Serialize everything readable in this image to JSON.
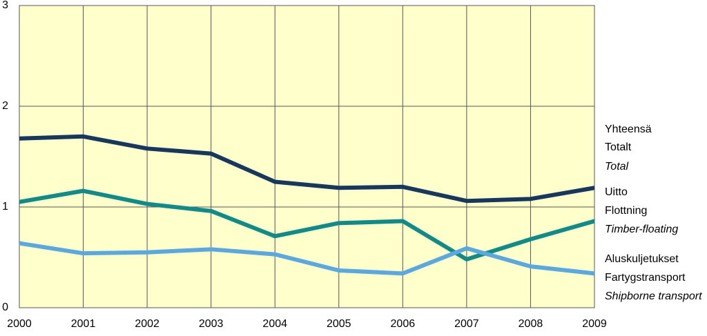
{
  "chart_data": {
    "type": "line",
    "x": [
      2000,
      2001,
      2002,
      2003,
      2004,
      2005,
      2006,
      2007,
      2008,
      2009
    ],
    "xlim": [
      2000,
      2009
    ],
    "xticks": [
      2000,
      2001,
      2002,
      2003,
      2004,
      2005,
      2006,
      2007,
      2008,
      2009
    ],
    "ylim": [
      0,
      3
    ],
    "yticks": [
      0,
      1,
      2,
      3
    ],
    "grid": true,
    "background": "#ffffcc",
    "series": [
      {
        "name": [
          "Yhteensä",
          "Totalt",
          "Total"
        ],
        "color": "#17375e",
        "values": [
          1.68,
          1.7,
          1.58,
          1.53,
          1.25,
          1.19,
          1.2,
          1.06,
          1.08,
          1.19
        ]
      },
      {
        "name": [
          "Uitto",
          "Flottning",
          "Timber-floating"
        ],
        "color": "#138a8a",
        "values": [
          1.05,
          1.16,
          1.03,
          0.96,
          0.71,
          0.84,
          0.86,
          0.48,
          0.68,
          0.86
        ]
      },
      {
        "name": [
          "Aluskuljetukset",
          "Fartygstransport",
          "Shipborne transport"
        ],
        "color": "#5ba8e0",
        "values": [
          0.64,
          0.54,
          0.55,
          0.58,
          0.53,
          0.37,
          0.34,
          0.59,
          0.41,
          0.34
        ]
      }
    ]
  }
}
